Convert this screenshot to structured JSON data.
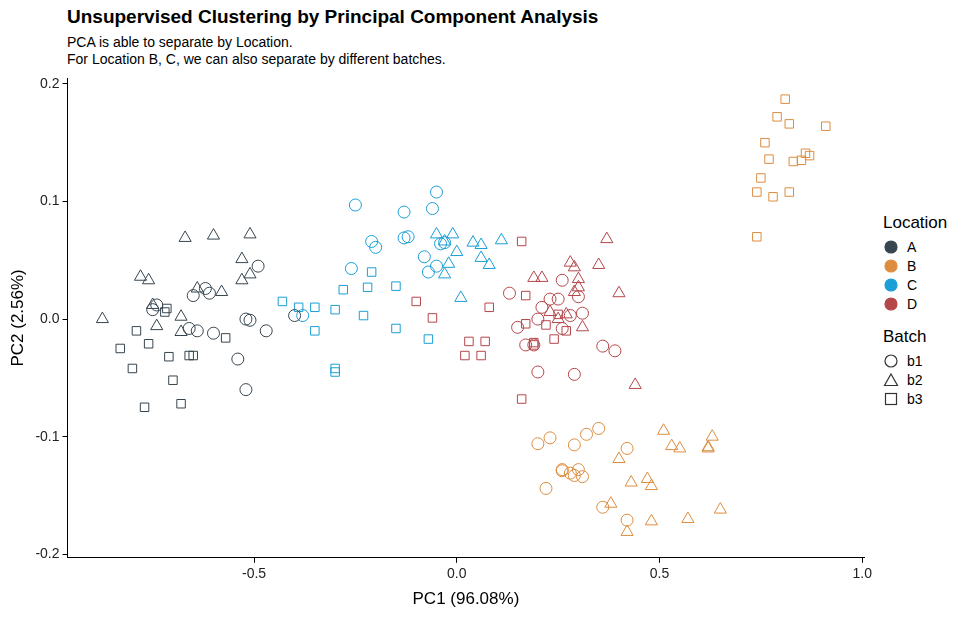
{
  "chart_data": {
    "type": "scatter",
    "title": "Unsupervised Clustering by Principal Component Analysis",
    "subtitle": [
      "PCA is able to separate by Location.",
      "For Location B, C, we can also separate by different batches."
    ],
    "x_label": "PC1 (96.08%)",
    "y_label": "PC2 (2.56%)",
    "xlim": [
      -0.96,
      1.005
    ],
    "ylim": [
      -0.203,
      0.205
    ],
    "xticks": [
      -0.5,
      {
        "value": 0,
        "label": "0.0"
      },
      0.5,
      {
        "value": 1,
        "label": "1.0"
      }
    ],
    "yticks": [
      -0.2,
      -0.1,
      {
        "value": 0,
        "label": "0.0"
      },
      0.1,
      0.2
    ],
    "grid": false,
    "legend": "right",
    "legend_groups": [
      {
        "title": "Location",
        "items": [
          {
            "name": "A",
            "color": "#36454f"
          },
          {
            "name": "B",
            "color": "#dd8d3f"
          },
          {
            "name": "C",
            "color": "#1a9fd6"
          },
          {
            "name": "D",
            "color": "#b5474b"
          }
        ]
      },
      {
        "title": "Batch",
        "items": [
          {
            "name": "b1",
            "marker": "circle"
          },
          {
            "name": "b2",
            "marker": "triangle"
          },
          {
            "name": "b3",
            "marker": "square"
          }
        ]
      }
    ],
    "series": [
      {
        "location": "A",
        "batch": "b1",
        "points": [
          [
            -0.49,
            0.045
          ],
          [
            -0.51,
            -0.001
          ],
          [
            -0.52,
            0.0
          ],
          [
            -0.54,
            -0.034
          ],
          [
            -0.52,
            -0.06
          ],
          [
            -0.47,
            -0.01
          ],
          [
            -0.4,
            0.003
          ],
          [
            -0.65,
            0.02
          ],
          [
            -0.64,
            -0.01
          ],
          [
            -0.62,
            0.026
          ],
          [
            -0.61,
            0.022
          ],
          [
            -0.66,
            -0.008
          ],
          [
            -0.74,
            0.012
          ],
          [
            -0.6,
            -0.012
          ],
          [
            -0.75,
            0.008
          ]
        ]
      },
      {
        "location": "A",
        "batch": "b2",
        "points": [
          [
            -0.874,
            0.0
          ],
          [
            -0.78,
            0.036
          ],
          [
            -0.76,
            0.033
          ],
          [
            -0.75,
            0.012
          ],
          [
            -0.74,
            -0.006
          ],
          [
            -0.68,
            0.002
          ],
          [
            -0.68,
            -0.011
          ],
          [
            -0.67,
            0.069
          ],
          [
            -0.64,
            0.026
          ],
          [
            -0.6,
            0.071
          ],
          [
            -0.58,
            0.023
          ],
          [
            -0.53,
            0.051
          ],
          [
            -0.51,
            0.072
          ],
          [
            -0.53,
            0.033
          ],
          [
            -0.51,
            0.038
          ]
        ]
      },
      {
        "location": "A",
        "batch": "b3",
        "points": [
          [
            -0.83,
            -0.025
          ],
          [
            -0.79,
            -0.01
          ],
          [
            -0.8,
            -0.042
          ],
          [
            -0.76,
            -0.021
          ],
          [
            -0.77,
            -0.075
          ],
          [
            -0.72,
            0.006
          ],
          [
            -0.71,
            -0.032
          ],
          [
            -0.7,
            -0.052
          ],
          [
            -0.68,
            -0.072
          ],
          [
            -0.66,
            -0.031
          ],
          [
            -0.65,
            -0.031
          ],
          [
            -0.57,
            -0.016
          ],
          [
            -0.715,
            0.009
          ]
        ]
      },
      {
        "location": "C",
        "batch": "b1",
        "points": [
          [
            -0.25,
            0.097
          ],
          [
            -0.21,
            0.066
          ],
          [
            -0.2,
            0.061
          ],
          [
            -0.26,
            0.043
          ],
          [
            -0.13,
            0.091
          ],
          [
            -0.13,
            0.069
          ],
          [
            -0.12,
            0.07
          ],
          [
            -0.06,
            0.094
          ],
          [
            -0.05,
            0.108
          ],
          [
            -0.08,
            0.053
          ],
          [
            -0.07,
            0.04
          ],
          [
            -0.05,
            0.045
          ],
          [
            -0.04,
            0.064
          ],
          [
            -0.03,
            0.065
          ],
          [
            -0.38,
            0.003
          ]
        ]
      },
      {
        "location": "C",
        "batch": "b2",
        "points": [
          [
            -0.05,
            0.072
          ],
          [
            -0.03,
            0.066
          ],
          [
            -0.01,
            0.072
          ],
          [
            0.0,
            0.057
          ],
          [
            0.04,
            0.065
          ],
          [
            0.06,
            0.063
          ],
          [
            0.06,
            0.052
          ],
          [
            0.08,
            0.046
          ],
          [
            0.11,
            0.067
          ],
          [
            -0.02,
            0.047
          ],
          [
            0.01,
            0.018
          ],
          [
            -0.03,
            0.038
          ]
        ]
      },
      {
        "location": "C",
        "batch": "b3",
        "points": [
          [
            -0.43,
            0.015
          ],
          [
            -0.39,
            0.01
          ],
          [
            -0.35,
            0.01
          ],
          [
            -0.35,
            -0.01
          ],
          [
            -0.3,
            0.008
          ],
          [
            -0.3,
            -0.042
          ],
          [
            -0.3,
            -0.045
          ],
          [
            -0.28,
            0.025
          ],
          [
            -0.23,
            0.003
          ],
          [
            -0.21,
            0.04
          ],
          [
            -0.22,
            0.027
          ],
          [
            -0.15,
            0.028
          ],
          [
            -0.15,
            -0.008
          ],
          [
            -0.07,
            -0.017
          ]
        ]
      },
      {
        "location": "D",
        "batch": "b1",
        "points": [
          [
            0.13,
            0.022
          ],
          [
            0.15,
            -0.007
          ],
          [
            0.17,
            -0.022
          ],
          [
            0.19,
            -0.022
          ],
          [
            0.2,
            0.0
          ],
          [
            0.2,
            -0.045
          ],
          [
            0.21,
            0.01
          ],
          [
            0.23,
            0.017
          ],
          [
            0.25,
            0.017
          ],
          [
            0.26,
            -0.008
          ],
          [
            0.28,
            0.003
          ],
          [
            0.29,
            -0.047
          ],
          [
            0.3,
            0.019
          ],
          [
            0.31,
            0.005
          ],
          [
            0.36,
            -0.023
          ],
          [
            0.39,
            -0.027
          ],
          [
            0.26,
            0.033
          ]
        ]
      },
      {
        "location": "D",
        "batch": "b2",
        "points": [
          [
            0.19,
            0.035
          ],
          [
            0.21,
            0.035
          ],
          [
            0.23,
            0.006
          ],
          [
            0.25,
            0.0
          ],
          [
            0.27,
            0.004
          ],
          [
            0.28,
            0.048
          ],
          [
            0.29,
            0.044
          ],
          [
            0.29,
            0.023
          ],
          [
            0.3,
            0.034
          ],
          [
            0.3,
            0.027
          ],
          [
            0.31,
            -0.007
          ],
          [
            0.35,
            0.046
          ],
          [
            0.37,
            0.068
          ],
          [
            0.4,
            0.022
          ],
          [
            0.44,
            -0.056
          ]
        ]
      },
      {
        "location": "D",
        "batch": "b3",
        "points": [
          [
            -0.06,
            0.001
          ],
          [
            -0.1,
            0.015
          ],
          [
            0.02,
            -0.031
          ],
          [
            0.03,
            -0.019
          ],
          [
            0.07,
            -0.019
          ],
          [
            0.06,
            -0.031
          ],
          [
            0.08,
            0.01
          ],
          [
            0.16,
            0.066
          ],
          [
            0.16,
            -0.068
          ],
          [
            0.17,
            -0.004
          ],
          [
            0.17,
            0.02
          ],
          [
            0.19,
            -0.02
          ],
          [
            0.19,
            -0.022
          ],
          [
            0.24,
            -0.017
          ],
          [
            0.22,
            -0.005
          ],
          [
            0.27,
            -0.01
          ],
          [
            0.25,
            0.004
          ]
        ]
      },
      {
        "location": "B",
        "batch": "b1",
        "points": [
          [
            0.2,
            -0.106
          ],
          [
            0.23,
            -0.101
          ],
          [
            0.22,
            -0.144
          ],
          [
            0.26,
            -0.129
          ],
          [
            0.26,
            -0.128
          ],
          [
            0.28,
            -0.131
          ],
          [
            0.29,
            -0.133
          ],
          [
            0.3,
            -0.128
          ],
          [
            0.29,
            -0.107
          ],
          [
            0.32,
            -0.098
          ],
          [
            0.35,
            -0.093
          ],
          [
            0.36,
            -0.16
          ],
          [
            0.42,
            -0.11
          ],
          [
            0.42,
            -0.171
          ],
          [
            0.31,
            -0.134
          ]
        ]
      },
      {
        "location": "B",
        "batch": "b2",
        "points": [
          [
            0.38,
            -0.157
          ],
          [
            0.4,
            -0.119
          ],
          [
            0.43,
            -0.139
          ],
          [
            0.42,
            -0.181
          ],
          [
            0.47,
            -0.136
          ],
          [
            0.48,
            -0.142
          ],
          [
            0.48,
            -0.172
          ],
          [
            0.51,
            -0.095
          ],
          [
            0.53,
            -0.108
          ],
          [
            0.55,
            -0.11
          ],
          [
            0.57,
            -0.17
          ],
          [
            0.62,
            -0.109
          ],
          [
            0.62,
            -0.11
          ],
          [
            0.63,
            -0.1
          ],
          [
            0.65,
            -0.162
          ]
        ]
      },
      {
        "location": "B",
        "batch": "b3",
        "points": [
          [
            0.74,
            0.07
          ],
          [
            0.74,
            0.108
          ],
          [
            0.75,
            0.12
          ],
          [
            0.77,
            0.136
          ],
          [
            0.78,
            0.104
          ],
          [
            0.79,
            0.172
          ],
          [
            0.81,
            0.187
          ],
          [
            0.82,
            0.166
          ],
          [
            0.82,
            0.108
          ],
          [
            0.83,
            0.134
          ],
          [
            0.85,
            0.135
          ],
          [
            0.86,
            0.141
          ],
          [
            0.87,
            0.139
          ],
          [
            0.91,
            0.164
          ],
          [
            0.76,
            0.15
          ]
        ]
      }
    ]
  }
}
